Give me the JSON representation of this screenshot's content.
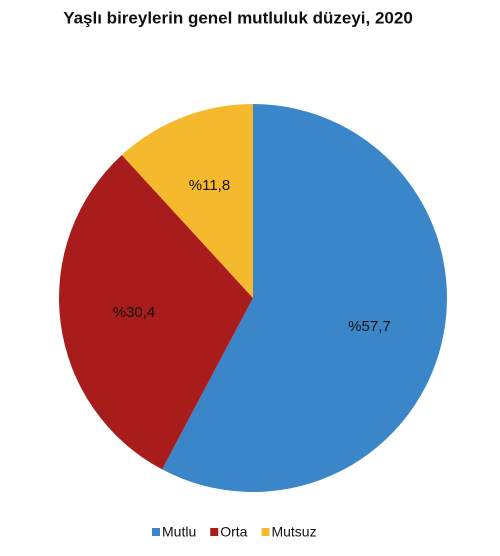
{
  "chart_data": {
    "type": "pie",
    "title": "Yaşlı bireylerin genel mutluluk düzeyi, 2020",
    "categories": [
      "Mutlu",
      "Orta",
      "Mutsuz"
    ],
    "values": [
      57.7,
      30.4,
      11.8
    ],
    "value_labels": [
      "%57,7",
      "%30,4",
      "%11,8"
    ],
    "colors": [
      "#3a86c8",
      "#a81c1c",
      "#f5b92e"
    ]
  }
}
